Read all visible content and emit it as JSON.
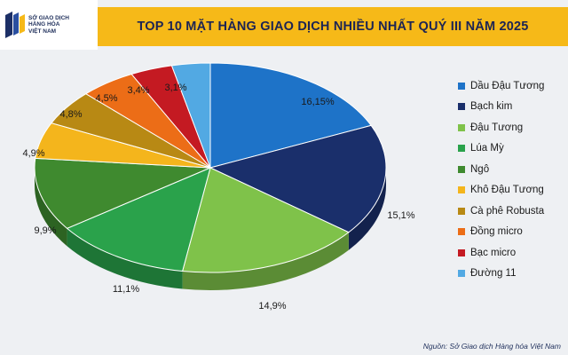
{
  "header": {
    "logo_text": "SỞ GIAO DỊCH\nHÀNG HÓA\nVIỆT NAM",
    "title": "TOP 10 MẶT HÀNG GIAO DỊCH NHIỀU NHẤT QUÝ III NĂM 2025"
  },
  "source": "Nguồn: Sở Giao dịch Hàng hóa Việt Nam",
  "chart_data": {
    "type": "pie",
    "title": "TOP 10 MẶT HÀNG GIAO DỊCH NHIỀU NHẤT QUÝ III NĂM 2025",
    "legend_position": "right",
    "slices": [
      {
        "name": "Dầu Đậu Tương",
        "value": 16.15,
        "label": "16,15%",
        "color": "#1e73c8"
      },
      {
        "name": "Bạch kim",
        "value": 15.1,
        "label": "15,1%",
        "color": "#1a2f6b"
      },
      {
        "name": "Đậu Tương",
        "value": 14.9,
        "label": "14,9%",
        "color": "#7fc24a"
      },
      {
        "name": "Lúa Mỳ",
        "value": 11.1,
        "label": "11,1%",
        "color": "#2aa24b"
      },
      {
        "name": "Ngô",
        "value": 9.9,
        "label": "9,9%",
        "color": "#3f8a2f"
      },
      {
        "name": "Khô Đậu Tương",
        "value": 4.9,
        "label": "4,9%",
        "color": "#f4b51c"
      },
      {
        "name": "Cà phê Robusta",
        "value": 4.8,
        "label": "4,8%",
        "color": "#b88914"
      },
      {
        "name": "Đồng micro",
        "value": 4.5,
        "label": "4,5%",
        "color": "#ec6d17"
      },
      {
        "name": "Bạc micro",
        "value": 3.4,
        "label": "3,4%",
        "color": "#c41a22"
      },
      {
        "name": "Đường 11",
        "value": 3.1,
        "label": "3,1%",
        "color": "#52a9e3"
      }
    ]
  }
}
